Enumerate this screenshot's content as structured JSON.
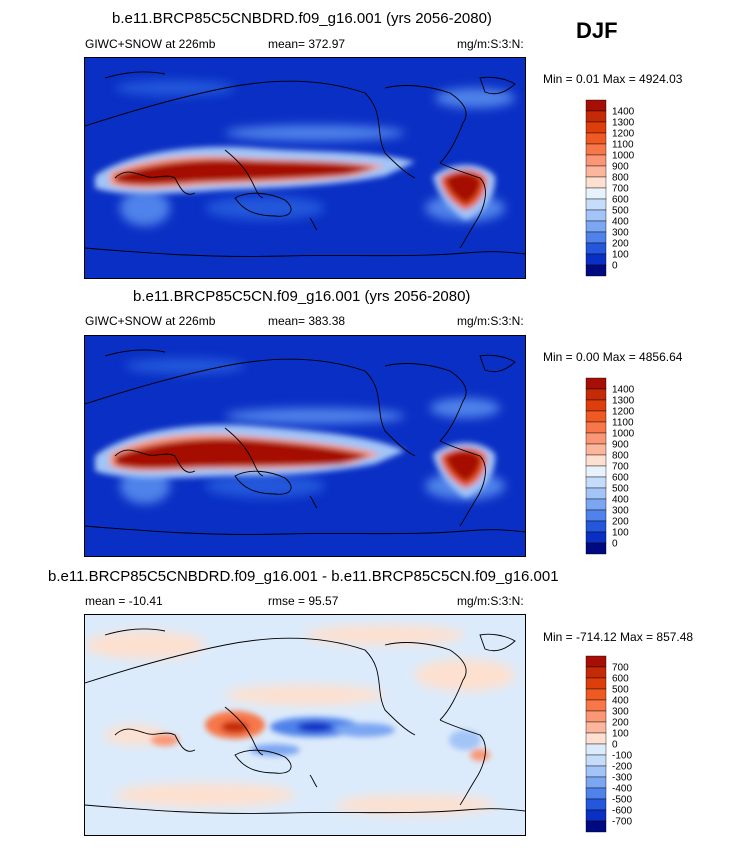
{
  "season": "DJF",
  "panels": [
    {
      "title": "b.e11.BRCP85C5CNBDRD.f09_g16.001 (yrs 2056-2080)",
      "variable": "GIWC+SNOW at 226mb",
      "stat1": "mean= 372.97",
      "stat2": "",
      "units": "mg/m:S:3:N:",
      "minmax": "Min =   0.01 Max = 4924.03"
    },
    {
      "title": "b.e11.BRCP85C5CN.f09_g16.001 (yrs 2056-2080)",
      "variable": "GIWC+SNOW at 226mb",
      "stat1": "mean= 383.38",
      "stat2": "",
      "units": "mg/m:S:3:N:",
      "minmax": "Min =   0.00 Max = 4856.64"
    },
    {
      "title": "b.e11.BRCP85C5CNBDRD.f09_g16.001 - b.e11.BRCP85C5CN.f09_g16.001",
      "variable": "",
      "stat1": "mean = -10.41",
      "stat2": "rmse =  95.57",
      "units": "mg/m:S:3:N:",
      "minmax": "Min = -714.12 Max = 857.48"
    }
  ],
  "colorbars": [
    {
      "labels": [
        "1400",
        "1300",
        "1200",
        "1100",
        "1000",
        "900",
        "800",
        "700",
        "600",
        "500",
        "400",
        "300",
        "200",
        "100",
        "0"
      ],
      "colors": [
        "#a50f05",
        "#c52a06",
        "#dd3e0c",
        "#ee5a22",
        "#f7774a",
        "#fb9775",
        "#fcb69d",
        "#fde0cf",
        "#e8f2fc",
        "#c5dcfa",
        "#a2c4f7",
        "#7aa6f2",
        "#4f82ea",
        "#2457db",
        "#0a2fc4",
        "#000a80"
      ]
    },
    {
      "labels": [
        "1400",
        "1300",
        "1200",
        "1100",
        "1000",
        "900",
        "800",
        "700",
        "600",
        "500",
        "400",
        "300",
        "200",
        "100",
        "0"
      ],
      "colors": [
        "#a50f05",
        "#c52a06",
        "#dd3e0c",
        "#ee5a22",
        "#f7774a",
        "#fb9775",
        "#fcb69d",
        "#fde0cf",
        "#e8f2fc",
        "#c5dcfa",
        "#a2c4f7",
        "#7aa6f2",
        "#4f82ea",
        "#2457db",
        "#0a2fc4",
        "#000a80"
      ]
    },
    {
      "labels": [
        "700",
        "600",
        "500",
        "400",
        "300",
        "200",
        "100",
        "0",
        "-100",
        "-200",
        "-300",
        "-400",
        "-500",
        "-600",
        "-700"
      ],
      "colors": [
        "#a50f05",
        "#c52a06",
        "#dd3e0c",
        "#ee5a22",
        "#f7774a",
        "#fb9775",
        "#fcb69d",
        "#fde0cf",
        "#dcebfb",
        "#c5dcfa",
        "#a2c4f7",
        "#7aa6f2",
        "#4f82ea",
        "#2457db",
        "#0a2fc4",
        "#000a80"
      ]
    }
  ]
}
